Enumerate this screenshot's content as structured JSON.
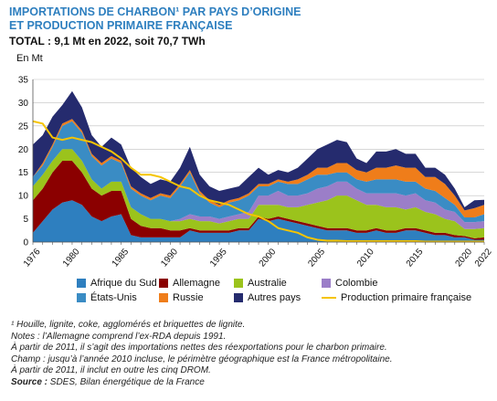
{
  "header": {
    "title_line1": "IMPORTATIONS DE CHARBON¹ PAR PAYS D’ORIGINE",
    "title_line2": "ET PRODUCTION PRIMAIRE FRANÇAISE",
    "subtitle": "TOTAL : 9,1 Mt en 2022, soit 70,7 TWh",
    "unit": "En Mt"
  },
  "notes": {
    "footnote": "¹ Houille, lignite, coke, agglomérés et briquettes de lignite.",
    "note1": "Notes : l’Allemagne comprend l’ex-RDA depuis 1991.",
    "note2": "À partir de 2011, il s’agit des importations nettes des réexportations pour le charbon primaire.",
    "note3": "Champ : jusqu’à l’année 2010 incluse, le périmètre géographique est la France métropolitaine.",
    "note4": "À partir de 2011, il inclut en outre les cinq DROM.",
    "source_label": "Source :",
    "source_text": " SDES, Bilan énergétique de la France"
  },
  "chart_data": {
    "type": "area",
    "stacked": true,
    "x": [
      1976,
      1977,
      1978,
      1979,
      1980,
      1981,
      1982,
      1983,
      1984,
      1985,
      1986,
      1987,
      1988,
      1989,
      1990,
      1991,
      1992,
      1993,
      1994,
      1995,
      1996,
      1997,
      1998,
      1999,
      2000,
      2001,
      2002,
      2003,
      2004,
      2005,
      2006,
      2007,
      2008,
      2009,
      2010,
      2011,
      2012,
      2013,
      2014,
      2015,
      2016,
      2017,
      2018,
      2019,
      2020,
      2021,
      2022
    ],
    "x_ticks": [
      "1976",
      "1980",
      "1985",
      "1990",
      "1995",
      "2000",
      "2005",
      "2010",
      "2015",
      "2020",
      "2022"
    ],
    "y_ticks": [
      "0",
      "5",
      "10",
      "15",
      "20",
      "25",
      "30",
      "35"
    ],
    "ylim": [
      0,
      35
    ],
    "grid": true,
    "legend_position": "bottom",
    "series": [
      {
        "name": "Afrique du Sud",
        "color": "#2e7fbf",
        "values": [
          2,
          4.5,
          7,
          8.5,
          9,
          8,
          5.5,
          4.5,
          5.5,
          6,
          1.5,
          1,
          1,
          1,
          1,
          1,
          2.5,
          2,
          2,
          2,
          2,
          2.5,
          2.5,
          5,
          4.5,
          5,
          4.5,
          4,
          3.5,
          3,
          2.5,
          2.5,
          2.5,
          2,
          2,
          2.5,
          2,
          2,
          2.5,
          2.5,
          2,
          1.5,
          1.5,
          1,
          1,
          0.5,
          0.5
        ]
      },
      {
        "name": "Allemagne",
        "color": "#8b0000",
        "values": [
          7,
          7,
          8,
          9,
          8.5,
          7,
          6,
          5.5,
          5.5,
          5,
          3.5,
          2.5,
          2,
          2,
          1.5,
          1.5,
          0.5,
          0.5,
          0.5,
          0.5,
          0.5,
          0.5,
          0.5,
          0.5,
          0.5,
          0.5,
          0.5,
          0.5,
          0.5,
          0.5,
          0.5,
          0.5,
          0.5,
          0.5,
          0.5,
          0.5,
          0.5,
          0.5,
          0.5,
          0.5,
          0.5,
          0.5,
          0.5,
          0.5,
          0.3,
          0.3,
          0.5
        ]
      },
      {
        "name": "Australie",
        "color": "#9bc31c",
        "values": [
          3,
          3,
          2.5,
          2.5,
          2.5,
          2.5,
          2,
          1.5,
          2,
          2,
          2.5,
          2.5,
          2,
          2,
          2,
          2,
          2,
          2,
          2,
          1.5,
          2,
          2,
          2,
          2.5,
          3,
          2.5,
          2.5,
          3,
          4,
          5,
          6,
          7,
          7,
          6.5,
          5.5,
          5,
          5,
          5,
          4,
          4.5,
          4,
          4,
          3,
          3,
          1.5,
          2,
          2
        ]
      },
      {
        "name": "Colombie",
        "color": "#9b7ec8",
        "values": [
          0,
          0,
          0,
          0,
          0,
          0,
          0,
          0,
          0,
          0,
          0,
          0,
          0,
          0,
          0,
          0.5,
          1,
          1,
          1,
          1,
          1,
          1,
          1.5,
          2,
          2,
          3,
          2.5,
          2.5,
          2.5,
          3,
          3,
          3,
          3,
          2.5,
          2.5,
          2.5,
          3,
          3,
          3,
          3,
          2.5,
          2.5,
          2,
          2,
          1.5,
          1.5,
          1.5
        ]
      },
      {
        "name": "États-Unis",
        "color": "#3a8cc4",
        "values": [
          2,
          2,
          3,
          5,
          6,
          6,
          5,
          5,
          5,
          4,
          4,
          4,
          4,
          5,
          5,
          7,
          9,
          5,
          3,
          2.5,
          3,
          3,
          3.5,
          2,
          2,
          2,
          2.5,
          2.5,
          3,
          3,
          2.5,
          2,
          2,
          2,
          2.5,
          3,
          3,
          3,
          3,
          2.5,
          2.5,
          2.5,
          2.5,
          1.5,
          1,
          1,
          1.5
        ]
      },
      {
        "name": "Russie",
        "color": "#ef7d1a",
        "values": [
          0,
          0.5,
          0.5,
          0.5,
          0.5,
          0.5,
          0.5,
          0.5,
          0.5,
          0.5,
          0.5,
          0.5,
          0.5,
          0.5,
          0.5,
          0.5,
          0.5,
          0.5,
          0.5,
          0.5,
          0.5,
          0.5,
          0.5,
          0.5,
          0.5,
          0.5,
          0.5,
          1,
          1,
          1.5,
          1.5,
          2,
          2,
          2,
          2,
          2.5,
          2.5,
          3,
          3,
          3,
          2.5,
          3,
          3,
          2,
          1.5,
          2,
          2
        ]
      },
      {
        "name": "Autres pays",
        "color": "#252b6e",
        "values": [
          7,
          6,
          6,
          4,
          6,
          5,
          4,
          3.5,
          4,
          3.5,
          4,
          3.5,
          3,
          3,
          3,
          3.5,
          5,
          3.5,
          3,
          3,
          2.5,
          2.5,
          3.5,
          3.5,
          2,
          2,
          2,
          2.5,
          3.5,
          4,
          5,
          5,
          4.5,
          2.5,
          2,
          3.5,
          3.5,
          3.5,
          3,
          3,
          2,
          2,
          2,
          1.5,
          0.7,
          1.7,
          1.1
        ]
      }
    ],
    "line_series": {
      "name": "Production primaire française",
      "color": "#f5c400",
      "values": [
        26,
        25.5,
        22.5,
        22,
        22.5,
        22,
        21.5,
        20.5,
        19.5,
        18,
        16,
        14.5,
        14.5,
        14,
        13,
        12,
        11.5,
        10,
        9,
        8.5,
        8,
        7,
        6,
        5.5,
        4.5,
        3,
        2.5,
        2,
        1,
        0.5,
        0.3,
        0.3,
        0.2,
        0.2,
        0.2,
        0.2,
        0.2,
        0.2,
        0.2,
        0.2,
        0.1,
        0.1,
        0.1,
        0.1,
        0.1,
        0.1,
        0.1
      ]
    }
  }
}
